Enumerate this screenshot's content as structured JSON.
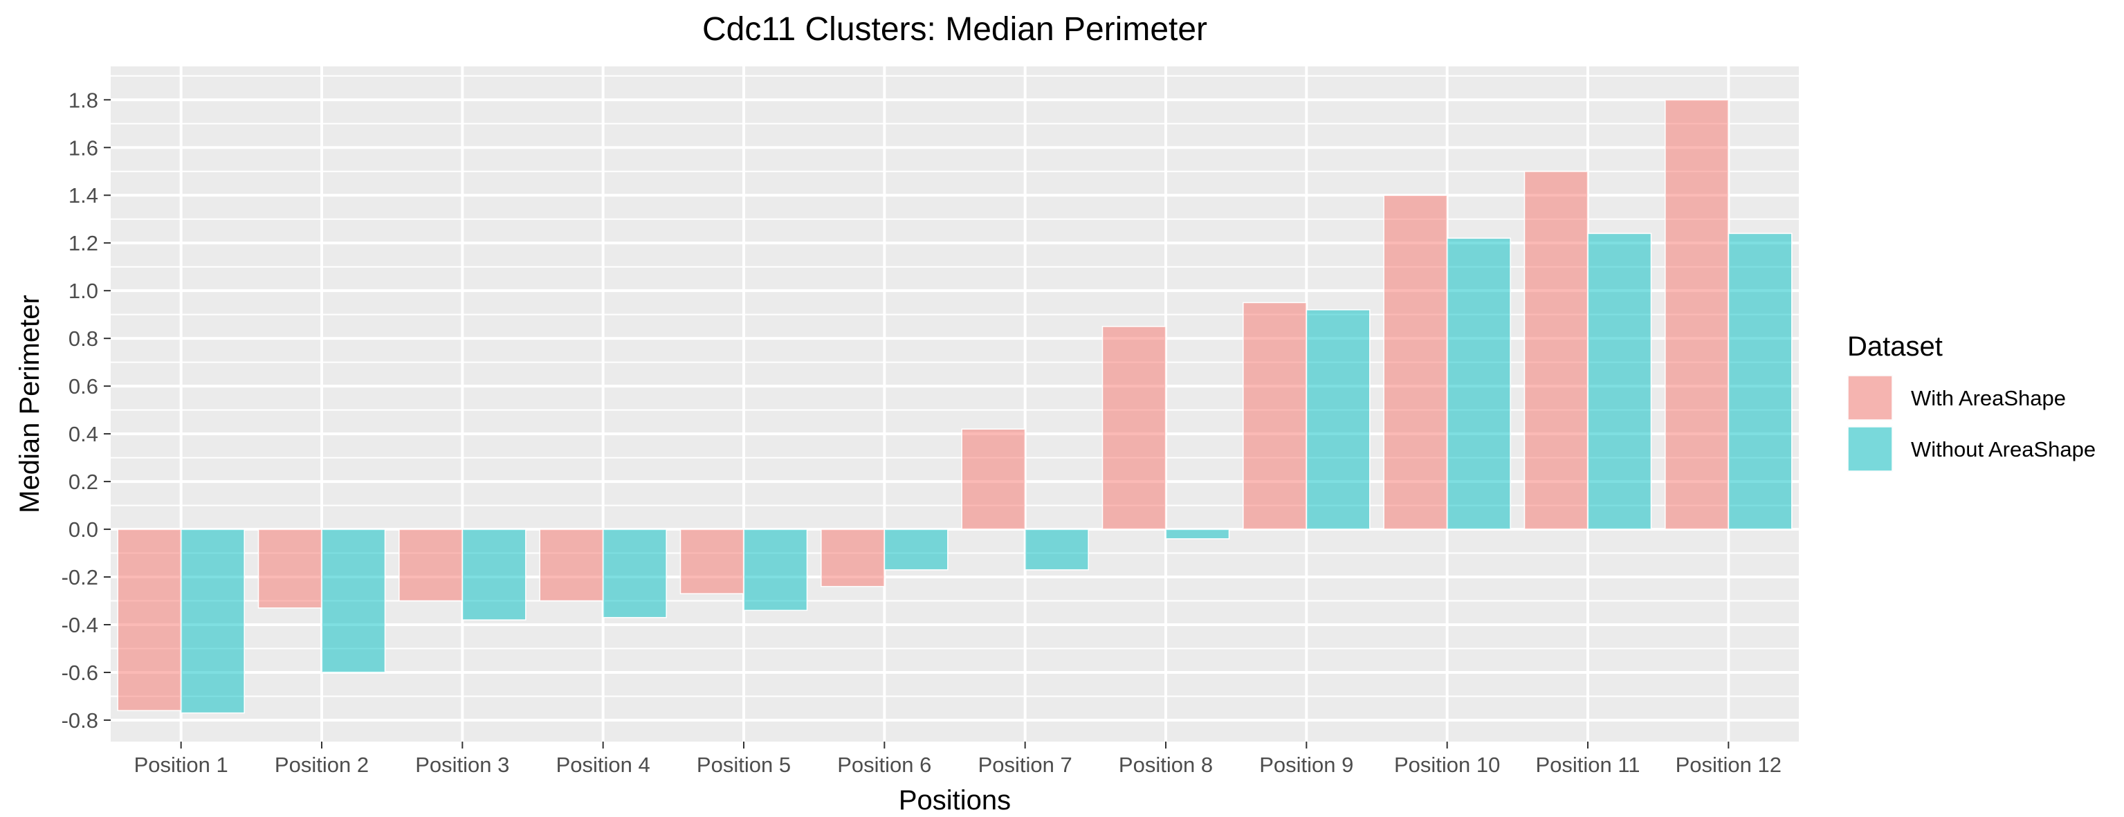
{
  "chart_data": {
    "type": "bar",
    "title": "Cdc11 Clusters: Median Perimeter",
    "xlabel": "Positions",
    "ylabel": "Median Perimeter",
    "categories": [
      "Position 1",
      "Position 2",
      "Position 3",
      "Position 4",
      "Position 5",
      "Position 6",
      "Position 7",
      "Position 8",
      "Position 9",
      "Position 10",
      "Position 11",
      "Position 12"
    ],
    "series": [
      {
        "name": "With AreaShape",
        "color": "#F8766D",
        "values": [
          -0.76,
          -0.33,
          -0.3,
          -0.3,
          -0.27,
          -0.24,
          0.42,
          0.85,
          0.95,
          1.4,
          1.5,
          1.8
        ]
      },
      {
        "name": "Without AreaShape",
        "color": "#00BFC4",
        "values": [
          -0.77,
          -0.6,
          -0.38,
          -0.37,
          -0.34,
          -0.17,
          -0.17,
          -0.04,
          0.92,
          1.22,
          1.24,
          1.24
        ]
      }
    ],
    "ylim": [
      -0.89,
      1.94
    ],
    "yticks": [
      "-0.8",
      "-0.6",
      "-0.4",
      "-0.2",
      "0.0",
      "0.2",
      "0.4",
      "0.6",
      "0.8",
      "1.0",
      "1.2",
      "1.4",
      "1.6",
      "1.8"
    ],
    "grid": true,
    "legend_title": "Dataset",
    "legend_position": "right",
    "panel_color": "#EBEBEB",
    "grid_color": "#FFFFFF"
  }
}
